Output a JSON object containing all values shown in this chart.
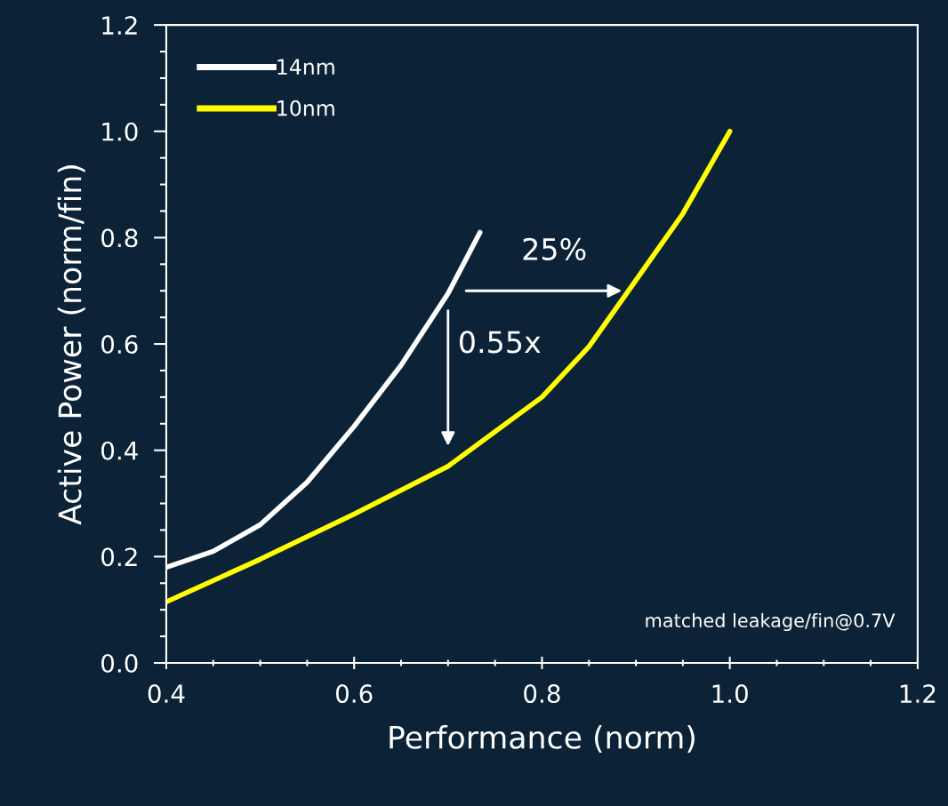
{
  "chart_data": {
    "type": "line",
    "xlabel": "Performance (norm)",
    "ylabel": "Active Power (norm/fin)",
    "xlim": [
      0.4,
      1.2
    ],
    "xticks": [
      {
        "value": 0.4,
        "label": "0.4"
      },
      {
        "value": 0.6,
        "label": "0.6"
      },
      {
        "value": 0.8,
        "label": "0.8"
      },
      {
        "value": 1.0,
        "label": "1.0"
      },
      {
        "value": 1.2,
        "label": "1.2"
      }
    ],
    "ylim": [
      0.0,
      1.2
    ],
    "yticks": [
      {
        "value": 0.0,
        "label": "0.0"
      },
      {
        "value": 0.2,
        "label": "0.2"
      },
      {
        "value": 0.4,
        "label": "0.4"
      },
      {
        "value": 0.6,
        "label": "0.6"
      },
      {
        "value": 0.8,
        "label": "0.8"
      },
      {
        "value": 1.0,
        "label": "1.0"
      },
      {
        "value": 1.2,
        "label": "1.2"
      }
    ],
    "series": [
      {
        "name": "14nm",
        "color": "#ffffff",
        "x": [
          0.4,
          0.45,
          0.5,
          0.55,
          0.6,
          0.65,
          0.7,
          0.734
        ],
        "values": [
          0.18,
          0.21,
          0.26,
          0.34,
          0.445,
          0.56,
          0.695,
          0.81
        ]
      },
      {
        "name": "10nm",
        "color": "#ffff00",
        "x": [
          0.4,
          0.5,
          0.6,
          0.7,
          0.8,
          0.85,
          0.9,
          0.95,
          1.0
        ],
        "values": [
          0.115,
          0.195,
          0.28,
          0.37,
          0.5,
          0.595,
          0.72,
          0.845,
          1.0
        ]
      }
    ],
    "legend": "top left",
    "grid": false,
    "line_style": "solid",
    "marker": "none",
    "annotations": [
      {
        "text": "25%",
        "x": 0.885,
        "y": 0.7
      },
      "0.55x",
      "matched leakage/fin@0.7V"
    ]
  }
}
